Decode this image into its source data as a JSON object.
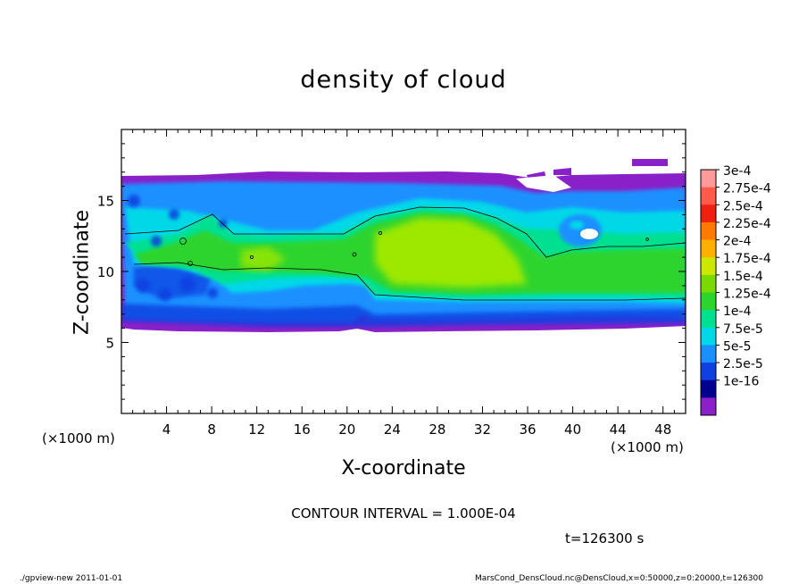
{
  "chart_data": {
    "type": "heatmap",
    "title": "density of cloud",
    "xlabel": "X-coordinate",
    "ylabel": "Z-coordinate",
    "x_unit_left": "(×1000 m)",
    "x_unit_right": "(×1000 m)",
    "xlim": [
      0,
      50
    ],
    "ylim": [
      0,
      20
    ],
    "x_ticks": [
      "4",
      "8",
      "12",
      "16",
      "20",
      "24",
      "28",
      "32",
      "36",
      "40",
      "44",
      "48"
    ],
    "y_ticks": [
      "5",
      "10",
      "15"
    ],
    "colorbar": {
      "labels": [
        "3e-4",
        "2.75e-4",
        "2.5e-4",
        "2.25e-4",
        "2e-4",
        "1.75e-4",
        "1.5e-4",
        "1.25e-4",
        "1e-4",
        "7.5e-5",
        "5e-5",
        "2.5e-5",
        "1e-16"
      ],
      "colors": [
        "#ff9a9a",
        "#ff5a4a",
        "#f02010",
        "#ff7a00",
        "#ffb000",
        "#cce800",
        "#7ada00",
        "#2ed42e",
        "#00e090",
        "#00d8e8",
        "#1a90ff",
        "#1040e0",
        "#000090",
        "#8a20c8"
      ]
    },
    "cloud_layer": {
      "base_z": [
        6.3,
        6.2,
        6.0,
        6.1,
        6.3,
        6.2,
        6.2,
        6.1,
        6.0,
        6.1,
        6.2,
        6.3,
        6.0
      ],
      "top_z": [
        16.7,
        16.6,
        16.7,
        16.8,
        16.9,
        16.8,
        16.7,
        16.6,
        16.7,
        16.8,
        16.6,
        16.5,
        16.7
      ],
      "sample_x": [
        0,
        4,
        8,
        12,
        16,
        20,
        24,
        28,
        32,
        36,
        40,
        44,
        50
      ]
    },
    "contour_interval": "CONTOUR INTERVAL = 1.000E-04",
    "time": "t=126300 s"
  },
  "footer": {
    "left": "./gpview-new  2011-01-01",
    "right": "MarsCond_DensCloud.nc@DensCloud,x=0:50000,z=0:20000,t=126300"
  }
}
